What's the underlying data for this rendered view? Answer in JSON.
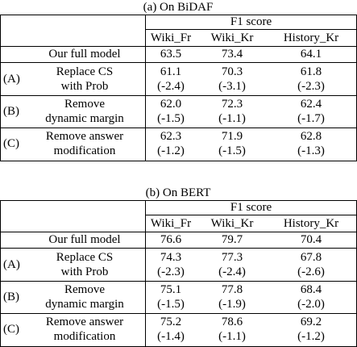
{
  "tables": [
    {
      "caption": "(a) On BiDAF",
      "group_header": "F1 score",
      "columns": [
        "Wiki_Fr",
        "Wiki_Kr",
        "History_Kr"
      ],
      "full_model": {
        "label": "Our full model",
        "values": [
          "63.5",
          "73.4",
          "64.1"
        ]
      },
      "ablations": [
        {
          "tag": "(A)",
          "lines": [
            "Replace CS",
            "with Prob"
          ],
          "values": [
            "61.1",
            "70.3",
            "61.8"
          ],
          "deltas": [
            "(-2.4)",
            "(-3.1)",
            "(-2.3)"
          ]
        },
        {
          "tag": "(B)",
          "lines": [
            "Remove",
            "dynamic margin"
          ],
          "values": [
            "62.0",
            "72.3",
            "62.4"
          ],
          "deltas": [
            "(-1.5)",
            "(-1.1)",
            "(-1.7)"
          ]
        },
        {
          "tag": "(C)",
          "lines": [
            "Remove answer",
            "modification"
          ],
          "values": [
            "62.3",
            "71.9",
            "62.8"
          ],
          "deltas": [
            "(-1.2)",
            "(-1.5)",
            "(-1.3)"
          ]
        }
      ]
    },
    {
      "caption": "(b) On BERT",
      "group_header": "F1 score",
      "columns": [
        "Wiki_Fr",
        "Wiki_Kr",
        "History_Kr"
      ],
      "full_model": {
        "label": "Our full model",
        "values": [
          "76.6",
          "79.7",
          "70.4"
        ]
      },
      "ablations": [
        {
          "tag": "(A)",
          "lines": [
            "Replace CS",
            "with Prob"
          ],
          "values": [
            "74.3",
            "77.3",
            "67.8"
          ],
          "deltas": [
            "(-2.3)",
            "(-2.4)",
            "(-2.6)"
          ]
        },
        {
          "tag": "(B)",
          "lines": [
            "Remove",
            "dynamic margin"
          ],
          "values": [
            "75.1",
            "77.8",
            "68.4"
          ],
          "deltas": [
            "(-1.5)",
            "(-1.9)",
            "(-2.0)"
          ]
        },
        {
          "tag": "(C)",
          "lines": [
            "Remove answer",
            "modification"
          ],
          "values": [
            "75.2",
            "78.6",
            "69.2"
          ],
          "deltas": [
            "(-1.4)",
            "(-1.1)",
            "(-1.2)"
          ]
        }
      ]
    }
  ]
}
